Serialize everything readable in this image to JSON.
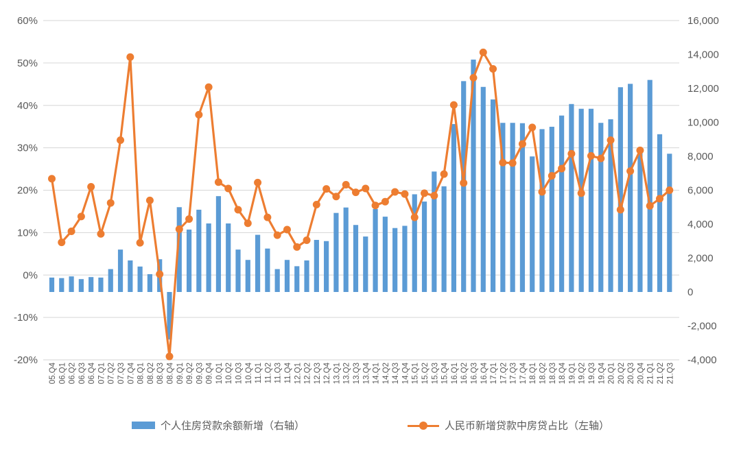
{
  "legend": {
    "bar_label": "个人住房贷款余额新增（右轴）",
    "line_label": "人民币新增贷款中房贷占比（左轴）"
  },
  "colors": {
    "bar": "#5B9BD5",
    "line": "#ED7D31",
    "gridline": "#D6D6D6",
    "axis_text": "#595959"
  },
  "chart_data": {
    "type": "combo",
    "title": "",
    "grid": true,
    "legend_position": "bottom",
    "categories": [
      "05.Q4",
      "06.Q1",
      "06.Q2",
      "06.Q3",
      "06.Q4",
      "07.Q1",
      "07.Q2",
      "07.Q3",
      "07.Q4",
      "08.Q1",
      "08.Q2",
      "08.Q3",
      "08.Q4",
      "09.Q1",
      "09.Q2",
      "09.Q3",
      "09.Q4",
      "10.Q1",
      "10.Q2",
      "10.Q3",
      "10.Q4",
      "11.Q1",
      "11.Q2",
      "11.Q3",
      "11.Q4",
      "12.Q1",
      "12.Q2",
      "12.Q3",
      "12.Q4",
      "13.Q1",
      "13.Q2",
      "13.Q3",
      "13.Q4",
      "14.Q1",
      "14.Q2",
      "14.Q3",
      "14.Q4",
      "15.Q1",
      "15.Q2",
      "15.Q3",
      "15.Q4",
      "16.Q1",
      "16.Q2",
      "16.Q3",
      "16.Q4",
      "17.Q1",
      "17.Q2",
      "17.Q3",
      "17.Q4",
      "18.Q1",
      "18.Q2",
      "18.Q3",
      "18.Q4",
      "19.Q1",
      "19.Q2",
      "19.Q3",
      "19.Q4",
      "20.Q1",
      "20.Q2",
      "20.Q3",
      "20.Q4",
      "21.Q1",
      "21.Q2",
      "21.Q3"
    ],
    "series": [
      {
        "name": "个人住房贷款余额新增（右轴）",
        "type": "bar",
        "axis": "right",
        "color": "#5B9BD5",
        "values": [
          850,
          820,
          920,
          760,
          880,
          850,
          1350,
          2500,
          1860,
          1500,
          1050,
          1930,
          -2800,
          5000,
          3680,
          4850,
          4040,
          5650,
          4040,
          2500,
          1890,
          3370,
          2560,
          1350,
          1890,
          1520,
          1860,
          3070,
          3000,
          4660,
          4980,
          3950,
          3270,
          4890,
          4440,
          3770,
          3900,
          5760,
          5330,
          7100,
          6230,
          9900,
          12430,
          13700,
          12090,
          11350,
          9970,
          9970,
          9950,
          7990,
          9600,
          9740,
          10400,
          11080,
          10800,
          10800,
          9970,
          10180,
          12070,
          12270,
          8460,
          12500,
          9300,
          8150
        ]
      },
      {
        "name": "人民币新增贷款中房贷占比（左轴）",
        "type": "line",
        "axis": "left",
        "color": "#ED7D31",
        "values": [
          22.7,
          7.7,
          10.3,
          13.8,
          20.8,
          9.7,
          17.0,
          31.8,
          51.4,
          7.6,
          17.6,
          0.2,
          -19.2,
          10.8,
          13.2,
          37.8,
          44.3,
          21.9,
          20.4,
          15.4,
          12.2,
          21.8,
          13.6,
          9.4,
          10.7,
          6.6,
          8.2,
          16.6,
          20.3,
          18.5,
          21.3,
          19.5,
          20.4,
          16.4,
          17.3,
          19.6,
          19.1,
          13.6,
          19.3,
          18.7,
          23.8,
          40.1,
          21.7,
          46.5,
          52.5,
          48.6,
          26.5,
          26.4,
          30.9,
          34.8,
          19.6,
          23.4,
          25.1,
          28.6,
          19.3,
          28.1,
          27.5,
          31.8,
          15.4,
          24.5,
          29.4,
          16.3,
          18.0,
          20.0
        ]
      }
    ],
    "left_axis": {
      "min": -20,
      "max": 60,
      "step": 10,
      "ticks": [
        "60%",
        "50%",
        "40%",
        "30%",
        "20%",
        "10%",
        "0%",
        "-10%",
        "-20%"
      ]
    },
    "right_axis": {
      "min": -4000,
      "max": 16000,
      "step": 2000,
      "ticks": [
        "16,000",
        "14,000",
        "12,000",
        "10,000",
        "8,000",
        "6,000",
        "4,000",
        "2,000",
        "0",
        "-2,000",
        "-4,000"
      ]
    }
  }
}
